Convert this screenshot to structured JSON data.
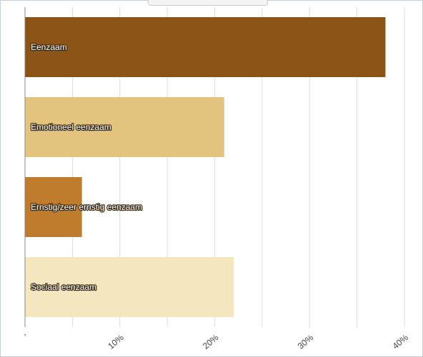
{
  "chart_data": {
    "type": "bar",
    "orientation": "horizontal",
    "title": "",
    "xlabel": "",
    "ylabel": "",
    "xlim": [
      0,
      40
    ],
    "grid": true,
    "x_tick_step": 5,
    "x_tick_labels": [
      {
        "value": 0,
        "label": "ʼ"
      },
      {
        "value": 10,
        "label": "10%"
      },
      {
        "value": 20,
        "label": "20%"
      },
      {
        "value": 30,
        "label": "30%"
      },
      {
        "value": 40,
        "label": "40%"
      }
    ],
    "categories": [
      "Eenzaam",
      "Emotioneel eenzaam",
      "Ernstig/zeer ernstig eenzaam",
      "Sociaal eenzaam"
    ],
    "values": [
      38,
      21,
      6,
      22
    ],
    "colors": [
      "#8b5316",
      "#e3c47f",
      "#bf7c2c",
      "#f4e6bf"
    ]
  }
}
